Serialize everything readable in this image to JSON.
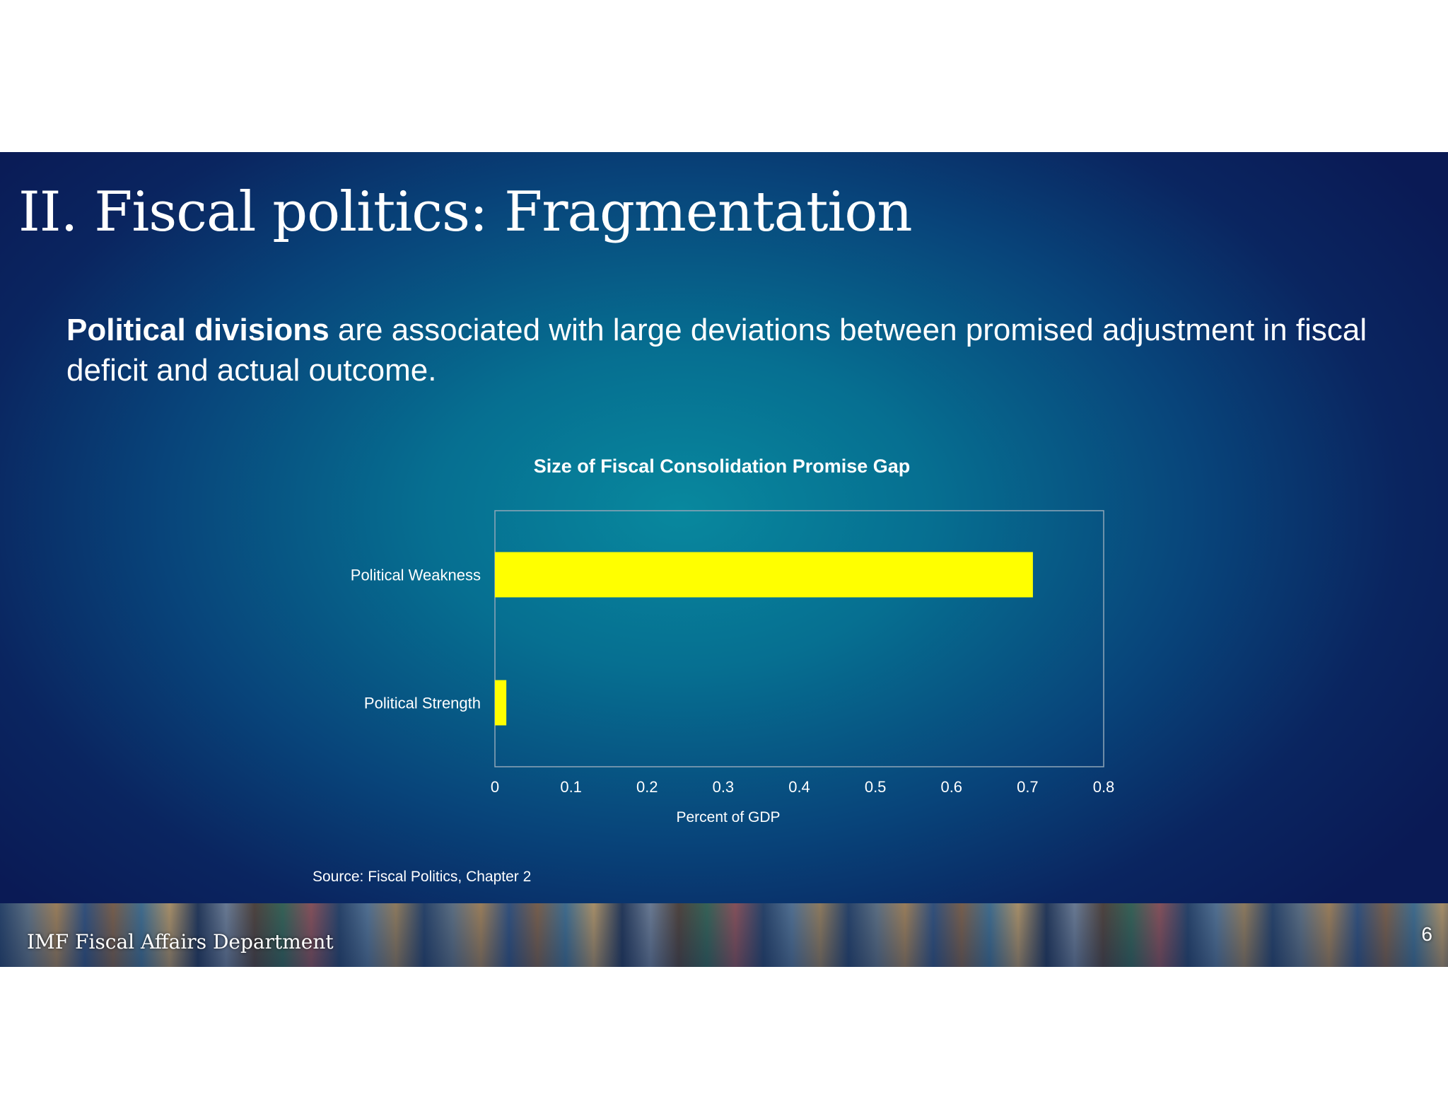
{
  "slide": {
    "title": "II. Fiscal politics: Fragmentation",
    "subtitle_bold": "Political divisions",
    "subtitle_rest": " are associated with large deviations between promised adjustment in fiscal deficit and actual outcome.",
    "source": "Source: Fiscal Politics, Chapter 2",
    "footer_department": "IMF Fiscal Affairs Department",
    "page_number": "6",
    "bar_color": "#ffff00"
  },
  "chart_data": {
    "type": "bar",
    "orientation": "horizontal",
    "title": "Size of Fiscal Consolidation Promise Gap",
    "xlabel": "Percent of GDP",
    "ylabel": "",
    "categories": [
      "Political Weakness",
      "Political Strength"
    ],
    "values": [
      0.707,
      0.015
    ],
    "xlim": [
      0,
      0.8
    ],
    "xticks": [
      "0",
      "0.1",
      "0.2",
      "0.3",
      "0.4",
      "0.5",
      "0.6",
      "0.7",
      "0.8"
    ],
    "grid": false,
    "legend": "none"
  }
}
